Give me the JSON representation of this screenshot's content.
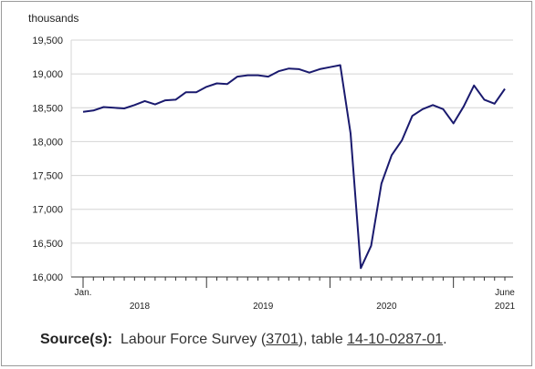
{
  "chart_data": {
    "type": "line",
    "ylabel": "thousands",
    "ylim": [
      16000,
      19500
    ],
    "yticks": [
      16000,
      16500,
      17000,
      17500,
      18000,
      18500,
      19000,
      19500
    ],
    "ytick_labels": [
      "16,000",
      "16,500",
      "17,000",
      "17,500",
      "18,000",
      "18,500",
      "19,000",
      "19,500"
    ],
    "grid": true,
    "x_month_labels": [
      {
        "index": 0,
        "text": "Jan."
      },
      {
        "index": 41,
        "text": "June"
      }
    ],
    "x_year_labels": [
      {
        "year": "2018",
        "start": 0,
        "end": 11
      },
      {
        "year": "2019",
        "start": 12,
        "end": 23
      },
      {
        "year": "2020",
        "start": 24,
        "end": 35
      },
      {
        "year": "2021",
        "start": 36,
        "end": 41
      }
    ],
    "series": [
      {
        "color": "#1a1a6e",
        "values": [
          18440,
          18460,
          18510,
          18500,
          18490,
          18540,
          18600,
          18550,
          18610,
          18620,
          18730,
          18730,
          18810,
          18860,
          18850,
          18960,
          18980,
          18980,
          18960,
          19040,
          19080,
          19070,
          19020,
          19070,
          19100,
          19130,
          18120,
          16130,
          16460,
          17380,
          17800,
          18020,
          18380,
          18480,
          18540,
          18480,
          18270,
          18520,
          18830,
          18620,
          18560,
          18780
        ]
      }
    ]
  },
  "source": {
    "label": "Source(s):",
    "text_before": "Labour Force Survey (",
    "survey_link": "3701",
    "text_middle": "), table ",
    "table_link": "14-10-0287-01",
    "text_after": "."
  }
}
